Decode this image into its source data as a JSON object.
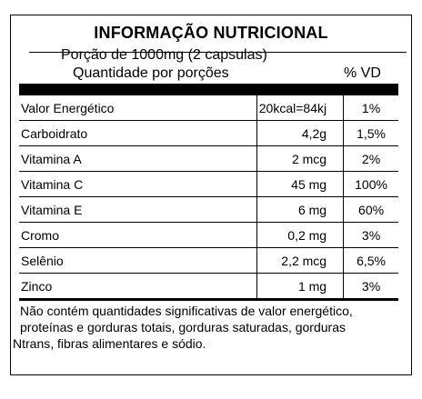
{
  "title": "INFORMAÇÃO NUTRICIONAL",
  "portion": "Porção de 1000mg (2 capsulas)",
  "quantity_header": "Quantidade por porções",
  "vd_header": "% VD",
  "rows": [
    {
      "name": "Valor Energético",
      "amount": "20kcal=84kj",
      "vd": "1%"
    },
    {
      "name": "Carboidrato",
      "amount": "4,2g",
      "vd": "1,5%"
    },
    {
      "name": "Vitamina A",
      "amount": "2 mcg",
      "vd": "2%"
    },
    {
      "name": "Vitamina C",
      "amount": "45 mg",
      "vd": "100%"
    },
    {
      "name": "Vitamina E",
      "amount": "6 mg",
      "vd": "60%"
    },
    {
      "name": "Cromo",
      "amount": "0,2 mg",
      "vd": "3%"
    },
    {
      "name": "Selênio",
      "amount": "2,2 mcg",
      "vd": "6,5%"
    },
    {
      "name": "Zinco",
      "amount": "1 mg",
      "vd": "3%"
    }
  ],
  "footnote": {
    "line1": "Não contém quantidades significativas de valor energético,",
    "line2": "proteínas e gorduras totais, gorduras saturadas, gorduras",
    "line3": "Ntrans, fibras alimentares e sódio."
  }
}
